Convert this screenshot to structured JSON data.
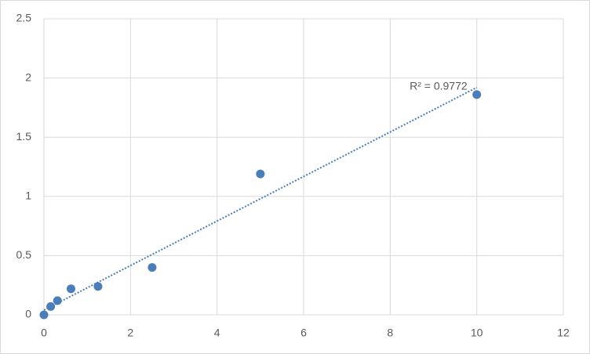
{
  "chart_data": {
    "type": "scatter",
    "x": [
      0,
      0.156,
      0.3125,
      0.625,
      1.25,
      2.5,
      5,
      10
    ],
    "values": [
      0,
      0.07,
      0.12,
      0.22,
      0.24,
      0.4,
      1.19,
      1.86
    ],
    "color": "#4a7ebb",
    "xlim": [
      0,
      12
    ],
    "xticks": [
      0,
      2,
      4,
      6,
      8,
      10,
      12
    ],
    "ylim": [
      0,
      2.5
    ],
    "yticks": [
      0,
      0.5,
      1,
      1.5,
      2,
      2.5
    ],
    "grid": true,
    "trendline": {
      "label": "R² = 0.9772",
      "x": [
        0,
        10
      ],
      "y": [
        0.04,
        1.92
      ],
      "color": "#4a7ebb"
    }
  }
}
